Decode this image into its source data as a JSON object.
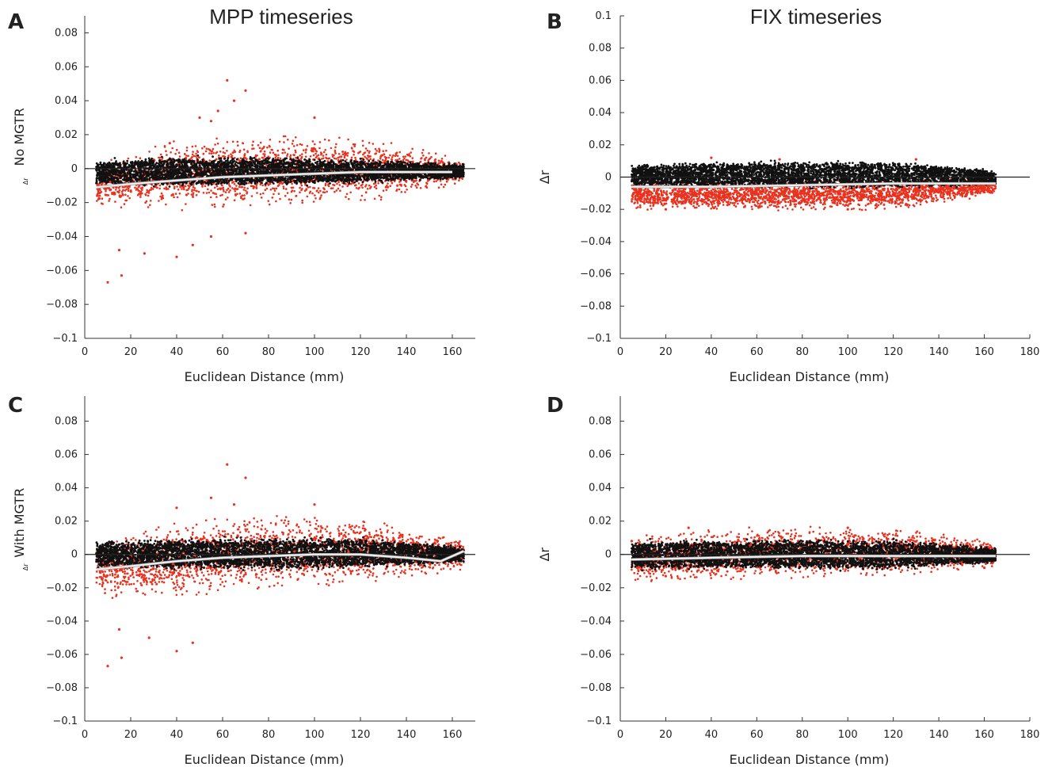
{
  "figure": {
    "column_titles": [
      "MPP timeseries",
      "FIX timeseries"
    ],
    "colors": {
      "above": "#e8321f",
      "bulk": "#111111",
      "trend": "#f2f2f2",
      "trend_outline": "#9a9a9a",
      "zero_line": "#222222",
      "axis": "#333333"
    }
  },
  "chart_data": [
    {
      "panel": "A",
      "type": "scatter",
      "column_title": "MPP timeseries",
      "xlabel": "Euclidean Distance (mm)",
      "ylabel": "No MGTR",
      "ylabel_sub": "Δr",
      "xlim": [
        0,
        170
      ],
      "ylim": [
        -0.1,
        0.09
      ],
      "xticks": [
        0,
        20,
        40,
        60,
        80,
        100,
        120,
        140,
        160
      ],
      "yticks": [
        -0.1,
        -0.08,
        -0.06,
        -0.04,
        -0.02,
        0,
        0.02,
        0.04,
        0.06,
        0.08
      ],
      "ytick_labels": [
        "−0.1",
        "−0.08",
        "−0.06",
        "−0.04",
        "−0.02",
        "0",
        "0.02",
        "0.04",
        "0.06",
        "0.08"
      ],
      "x_range_data": [
        5,
        165
      ],
      "black_band": [
        [
          5,
          -0.008,
          0.003
        ],
        [
          40,
          -0.009,
          0.005
        ],
        [
          80,
          -0.008,
          0.005
        ],
        [
          120,
          -0.007,
          0.004
        ],
        [
          160,
          -0.005,
          0.002
        ]
      ],
      "red_band": [
        [
          5,
          -0.02,
          0.0
        ],
        [
          40,
          -0.02,
          0.012
        ],
        [
          80,
          -0.018,
          0.015
        ],
        [
          120,
          -0.016,
          0.015
        ],
        [
          160,
          -0.008,
          0.005
        ]
      ],
      "trend": [
        [
          5,
          -0.011
        ],
        [
          20,
          -0.009
        ],
        [
          40,
          -0.007
        ],
        [
          60,
          -0.005
        ],
        [
          80,
          -0.004
        ],
        [
          100,
          -0.003
        ],
        [
          120,
          -0.002
        ],
        [
          140,
          -0.002
        ],
        [
          160,
          -0.002
        ]
      ],
      "outliers": [
        [
          10,
          -0.067
        ],
        [
          16,
          -0.063
        ],
        [
          15,
          -0.048
        ],
        [
          26,
          -0.05
        ],
        [
          40,
          -0.052
        ],
        [
          47,
          -0.045
        ],
        [
          55,
          -0.04
        ],
        [
          70,
          -0.038
        ],
        [
          62,
          0.052
        ],
        [
          70,
          0.046
        ],
        [
          65,
          0.04
        ],
        [
          50,
          0.03
        ],
        [
          100,
          0.03
        ],
        [
          37,
          0.015
        ],
        [
          55,
          0.028
        ],
        [
          58,
          0.034
        ]
      ]
    },
    {
      "panel": "B",
      "type": "scatter",
      "column_title": "FIX timeseries",
      "xlabel": "Euclidean Distance (mm)",
      "ylabel": "Δr",
      "ylabel_sub": "",
      "xlim": [
        0,
        180
      ],
      "ylim": [
        -0.1,
        0.1
      ],
      "xticks": [
        0,
        20,
        40,
        60,
        80,
        100,
        120,
        140,
        160,
        180
      ],
      "yticks": [
        -0.1,
        -0.08,
        -0.06,
        -0.04,
        -0.02,
        0,
        0.02,
        0.04,
        0.06,
        0.08,
        0.1
      ],
      "ytick_labels": [
        "−0.1",
        "−0.08",
        "−0.06",
        "−0.04",
        "−0.02",
        "0",
        "0.02",
        "0.04",
        "0.06",
        "0.08",
        "0.1"
      ],
      "x_range_data": [
        5,
        165
      ],
      "black_band": [
        [
          5,
          -0.004,
          0.006
        ],
        [
          60,
          -0.005,
          0.008
        ],
        [
          120,
          -0.005,
          0.008
        ],
        [
          165,
          -0.004,
          0.003
        ]
      ],
      "red_band": [
        [
          5,
          -0.018,
          -0.004
        ],
        [
          60,
          -0.019,
          -0.004
        ],
        [
          120,
          -0.018,
          -0.003
        ],
        [
          165,
          -0.01,
          -0.002
        ]
      ],
      "trend": [
        [
          5,
          -0.006
        ],
        [
          40,
          -0.006
        ],
        [
          80,
          -0.005
        ],
        [
          120,
          -0.004
        ],
        [
          165,
          -0.004
        ]
      ],
      "outliers": [
        [
          40,
          0.012
        ],
        [
          70,
          0.011
        ],
        [
          130,
          0.011
        ],
        [
          20,
          -0.02
        ],
        [
          100,
          -0.02
        ]
      ]
    },
    {
      "panel": "C",
      "type": "scatter",
      "xlabel": "Euclidean Distance (mm)",
      "ylabel": "With MGTR",
      "ylabel_sub": "Δr",
      "xlim": [
        0,
        170
      ],
      "ylim": [
        -0.1,
        0.095
      ],
      "xticks": [
        0,
        20,
        40,
        60,
        80,
        100,
        120,
        140,
        160
      ],
      "yticks": [
        -0.1,
        -0.08,
        -0.06,
        -0.04,
        -0.02,
        0,
        0.02,
        0.04,
        0.06,
        0.08
      ],
      "ytick_labels": [
        "−0.1",
        "−0.08",
        "−0.06",
        "−0.04",
        "−0.02",
        "0",
        "0.02",
        "0.04",
        "0.06",
        "0.08"
      ],
      "x_range_data": [
        5,
        165
      ],
      "black_band": [
        [
          5,
          -0.006,
          0.006
        ],
        [
          40,
          -0.007,
          0.007
        ],
        [
          80,
          -0.007,
          0.008
        ],
        [
          120,
          -0.006,
          0.008
        ],
        [
          160,
          -0.004,
          0.004
        ]
      ],
      "red_band": [
        [
          5,
          -0.022,
          0.004
        ],
        [
          40,
          -0.022,
          0.015
        ],
        [
          80,
          -0.016,
          0.018
        ],
        [
          120,
          -0.013,
          0.018
        ],
        [
          160,
          -0.008,
          0.008
        ]
      ],
      "trend": [
        [
          5,
          -0.009
        ],
        [
          20,
          -0.007
        ],
        [
          40,
          -0.004
        ],
        [
          60,
          -0.002
        ],
        [
          80,
          -0.001
        ],
        [
          100,
          0.0
        ],
        [
          120,
          0.0
        ],
        [
          140,
          -0.002
        ],
        [
          155,
          -0.004
        ],
        [
          165,
          0.002
        ]
      ],
      "outliers": [
        [
          10,
          -0.067
        ],
        [
          16,
          -0.062
        ],
        [
          15,
          -0.045
        ],
        [
          28,
          -0.05
        ],
        [
          40,
          -0.058
        ],
        [
          47,
          -0.053
        ],
        [
          62,
          0.054
        ],
        [
          70,
          0.046
        ],
        [
          55,
          0.034
        ],
        [
          100,
          0.03
        ],
        [
          40,
          0.028
        ],
        [
          65,
          0.03
        ]
      ]
    },
    {
      "panel": "D",
      "type": "scatter",
      "xlabel": "Euclidean Distance (mm)",
      "ylabel": "Δr",
      "ylabel_sub": "",
      "xlim": [
        0,
        180
      ],
      "ylim": [
        -0.1,
        0.095
      ],
      "xticks": [
        0,
        20,
        40,
        60,
        80,
        100,
        120,
        140,
        160,
        180
      ],
      "yticks": [
        -0.1,
        -0.08,
        -0.06,
        -0.04,
        -0.02,
        0,
        0.02,
        0.04,
        0.06,
        0.08
      ],
      "ytick_labels": [
        "−0.1",
        "−0.08",
        "−0.06",
        "−0.04",
        "−0.02",
        "0",
        "0.02",
        "0.04",
        "0.06",
        "0.08"
      ],
      "x_range_data": [
        5,
        165
      ],
      "black_band": [
        [
          5,
          -0.007,
          0.006
        ],
        [
          60,
          -0.007,
          0.007
        ],
        [
          120,
          -0.007,
          0.007
        ],
        [
          165,
          -0.004,
          0.003
        ]
      ],
      "red_band": [
        [
          5,
          -0.014,
          0.008
        ],
        [
          60,
          -0.012,
          0.013
        ],
        [
          120,
          -0.01,
          0.013
        ],
        [
          165,
          -0.006,
          0.006
        ]
      ],
      "trend": [
        [
          5,
          -0.003
        ],
        [
          40,
          -0.002
        ],
        [
          80,
          -0.001
        ],
        [
          120,
          -0.001
        ],
        [
          165,
          -0.001
        ]
      ],
      "outliers": [
        [
          30,
          0.016
        ],
        [
          100,
          0.016
        ],
        [
          5,
          0.008
        ],
        [
          20,
          -0.013
        ],
        [
          160,
          -0.008
        ]
      ]
    }
  ]
}
